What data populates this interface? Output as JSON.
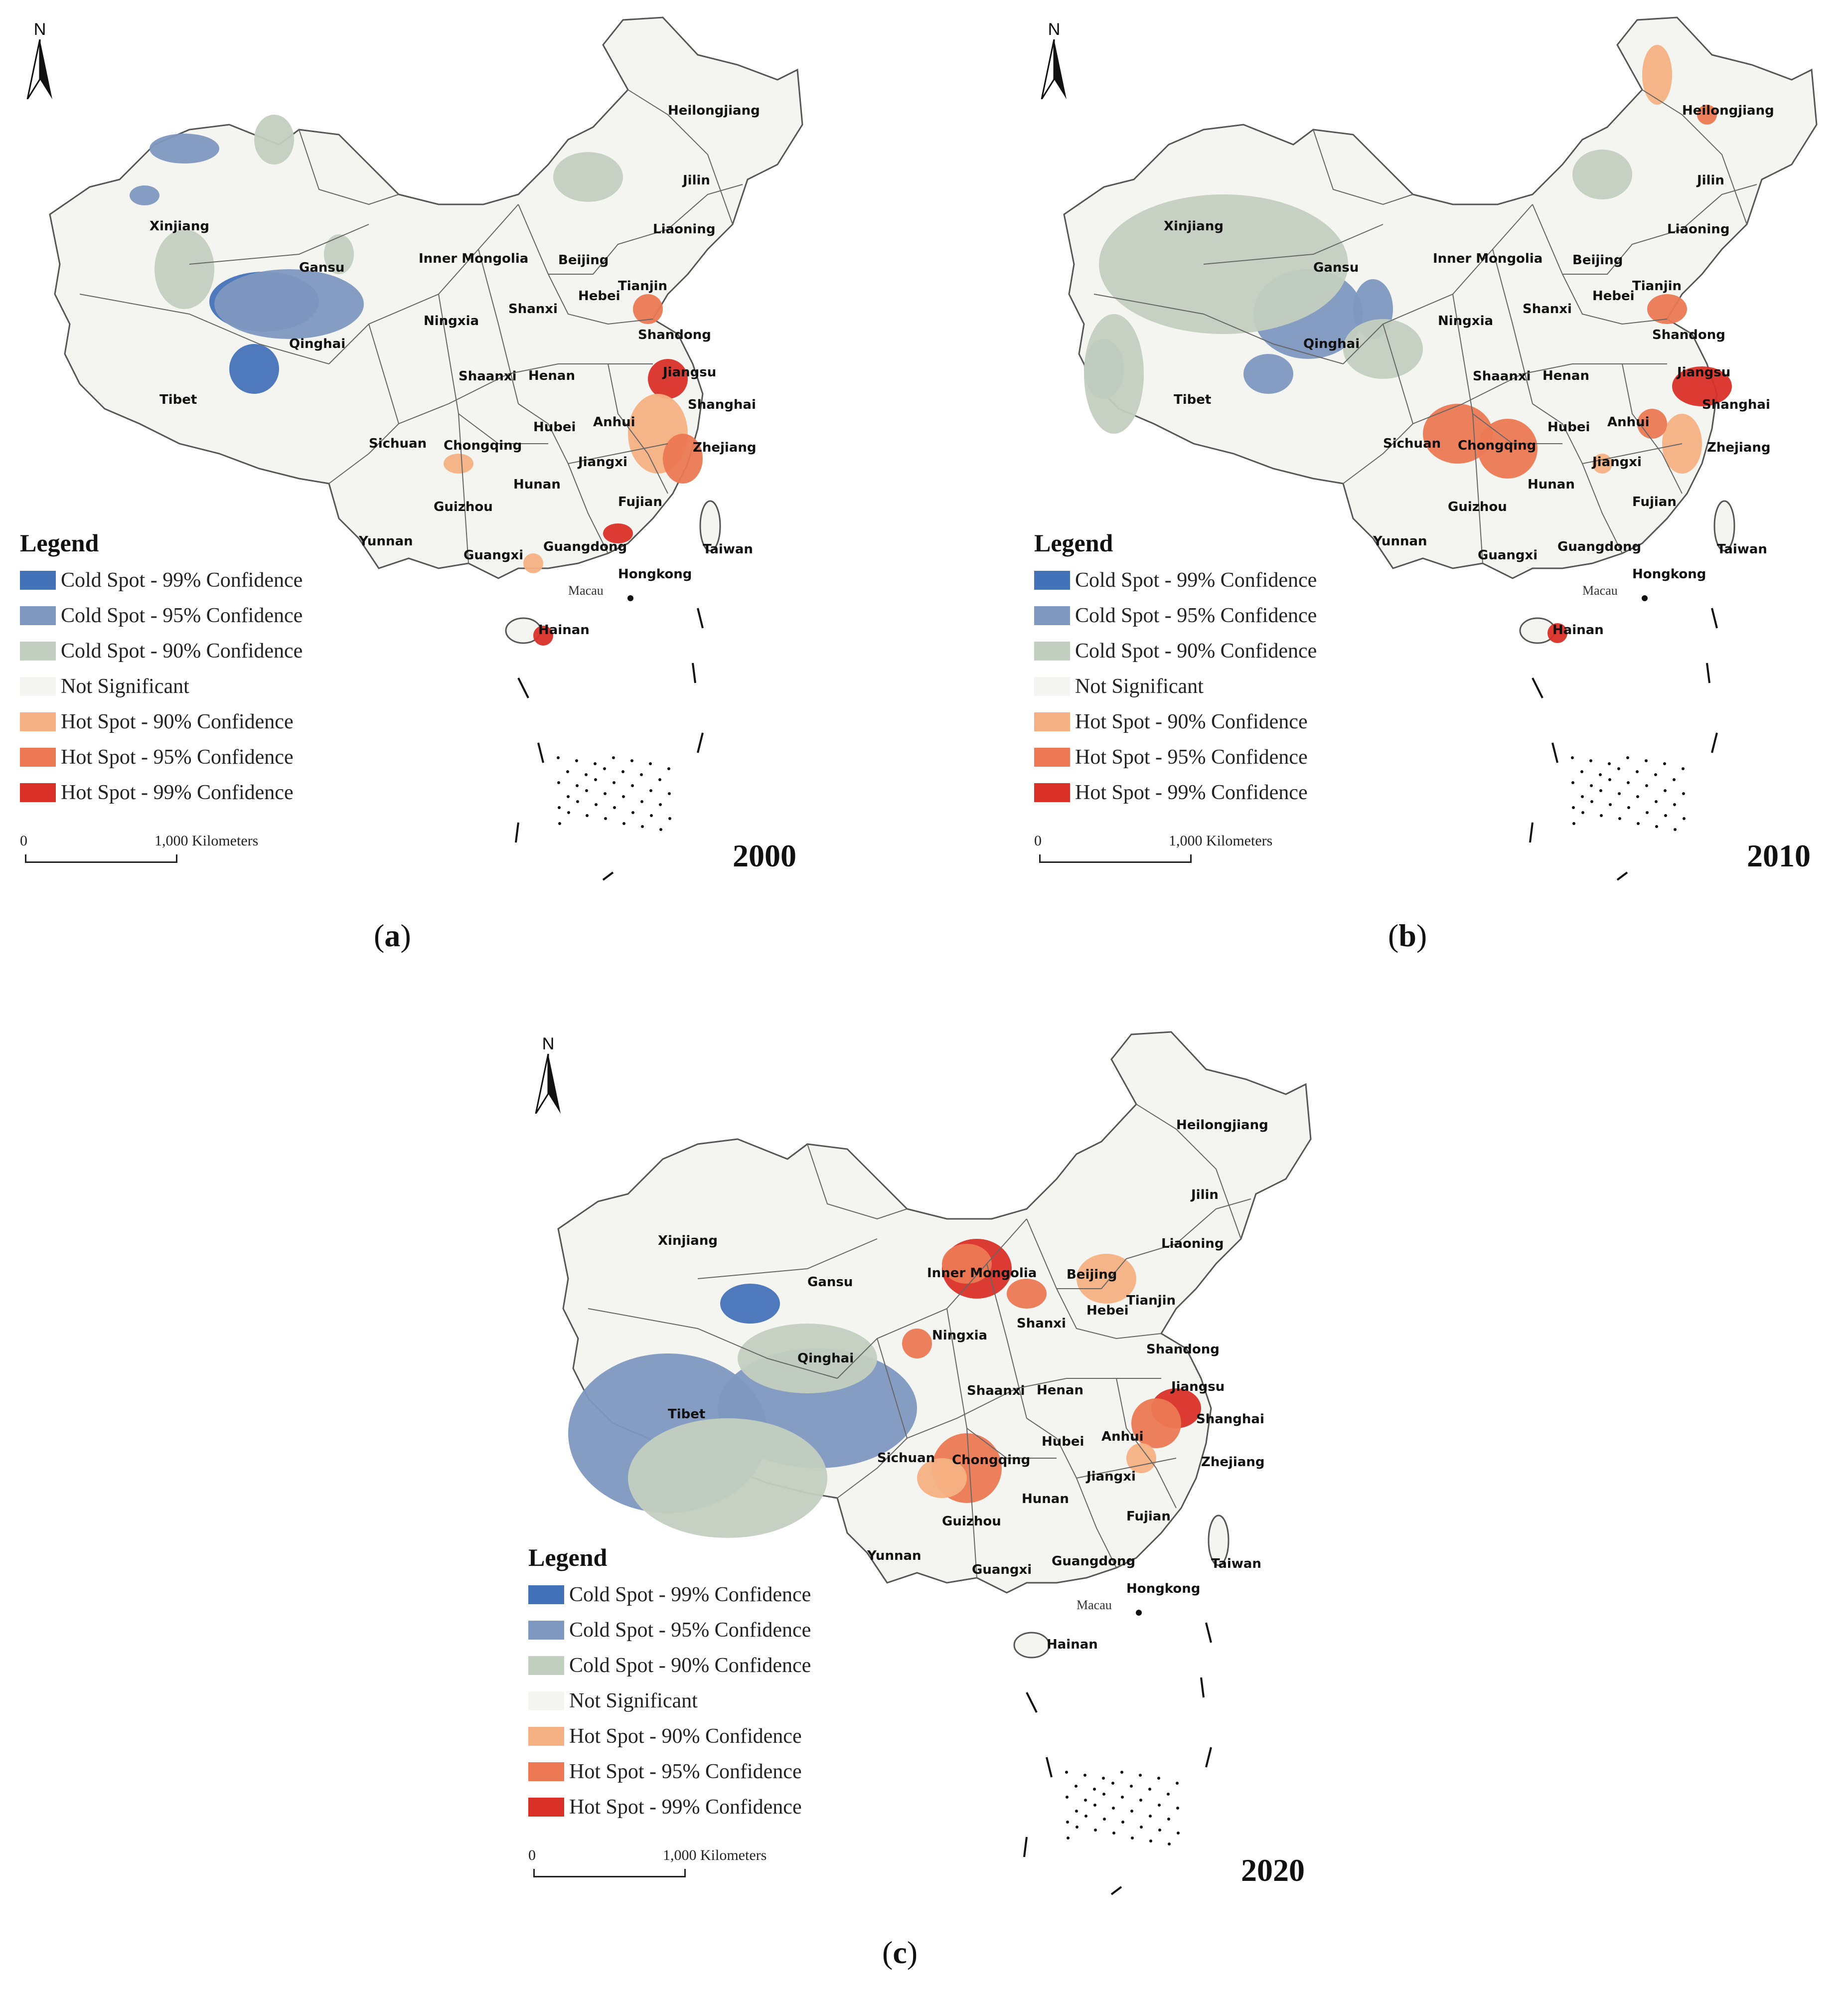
{
  "legend": {
    "title": "Legend",
    "items": [
      {
        "label": "Cold Spot - 99% Confidence",
        "color": "#4472b8"
      },
      {
        "label": "Cold Spot - 95% Confidence",
        "color": "#7e98c0"
      },
      {
        "label": "Cold Spot - 90% Confidence",
        "color": "#c3cfc0"
      },
      {
        "label": "Not Significant",
        "color": "#f4f4f0"
      },
      {
        "label": "Hot Spot - 90% Confidence",
        "color": "#f5b183"
      },
      {
        "label": "Hot Spot - 95% Confidence",
        "color": "#ec7953"
      },
      {
        "label": "Hot Spot - 99% Confidence",
        "color": "#d93027"
      }
    ]
  },
  "north_label": "N",
  "scale": {
    "start": "0",
    "distance": "1,000 Kilometers"
  },
  "place_labels": [
    "Heilongjiang",
    "Jilin",
    "Liaoning",
    "Xinjiang",
    "Gansu",
    "Inner Mongolia",
    "Beijing",
    "Tianjin",
    "Hebei",
    "Ningxia",
    "Shanxi",
    "Shandong",
    "Qinghai",
    "Jiangsu",
    "Shaanxi",
    "Henan",
    "Shanghai",
    "Tibet",
    "Anhui",
    "Hubei",
    "Sichuan",
    "Chongqing",
    "Zhejiang",
    "Jiangxi",
    "Hunan",
    "Fujian",
    "Guizhou",
    "Yunnan",
    "Guangxi",
    "Guangdong",
    "Taiwan",
    "Hongkong",
    "Macau",
    "Hainan"
  ],
  "panels": [
    {
      "year": "2000",
      "caption_letter": "a"
    },
    {
      "year": "2010",
      "caption_letter": "b"
    },
    {
      "year": "2020",
      "caption_letter": "c"
    }
  ]
}
